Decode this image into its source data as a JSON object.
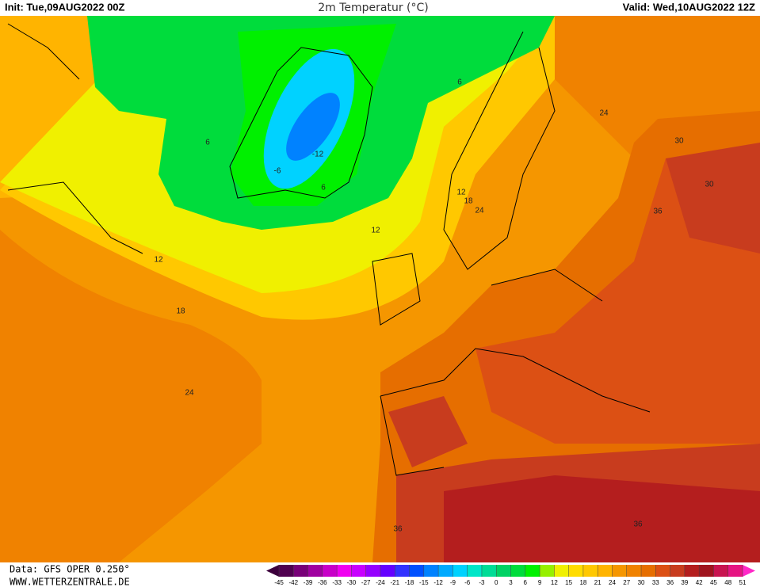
{
  "header": {
    "init": "Init: Tue,09AUG2022 00Z",
    "title": "2m Temperatur (°C)",
    "valid": "Valid: Wed,10AUG2022 12Z"
  },
  "footer": {
    "data": "Data: GFS OPER 0.250°",
    "site": "WWW.WETTERZENTRALE.DE"
  },
  "contour_labels": [
    "6",
    "12",
    "18",
    "24",
    "12",
    "6",
    "-6",
    "-12",
    "6",
    "24",
    "18",
    "12",
    "24",
    "30",
    "30",
    "36",
    "36",
    "36"
  ],
  "colorbar": {
    "ticks": [
      -45,
      -42,
      -39,
      -36,
      -33,
      -30,
      -27,
      -24,
      -21,
      -18,
      -15,
      -12,
      -9,
      -6,
      -3,
      0,
      3,
      6,
      9,
      12,
      15,
      18,
      21,
      24,
      27,
      30,
      33,
      36,
      39,
      42,
      45,
      48,
      51
    ],
    "colors": [
      "#500050",
      "#780078",
      "#a000a0",
      "#c800c8",
      "#f000f0",
      "#c800ff",
      "#9600ff",
      "#6400ff",
      "#3232ff",
      "#0050ff",
      "#0082ff",
      "#00aaff",
      "#00d2ff",
      "#00e6c8",
      "#00dc96",
      "#00d264",
      "#00dc3c",
      "#00f000",
      "#96f000",
      "#f0f000",
      "#ffdc00",
      "#ffc800",
      "#ffb400",
      "#f59600",
      "#f08200",
      "#e66e00",
      "#dc5014",
      "#c83c1e",
      "#b41e1e",
      "#a0141e",
      "#c81450",
      "#e61482"
    ],
    "under_color": "#3c003c",
    "over_color": "#ff28c8"
  }
}
